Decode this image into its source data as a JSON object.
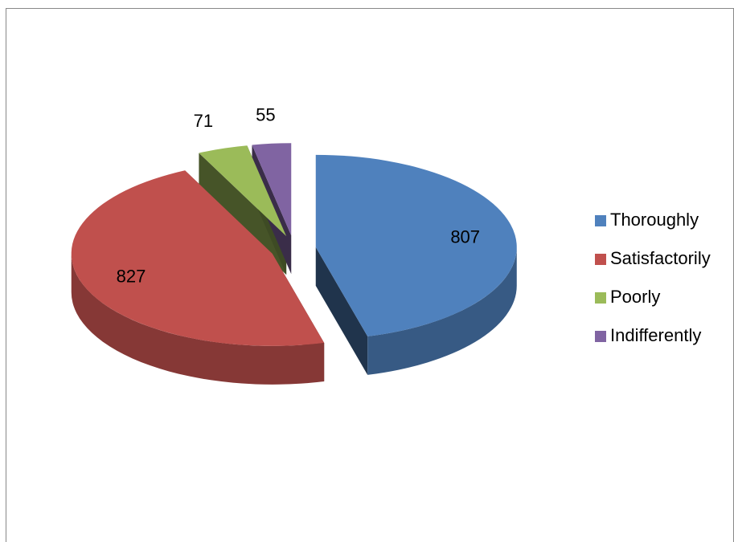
{
  "chart_data": {
    "type": "pie",
    "categories": [
      "Thoroughly",
      "Satisfactorily",
      "Poorly",
      "Indifferently"
    ],
    "values": [
      807,
      827,
      71,
      55
    ],
    "colors": [
      "#4f81bd",
      "#c0504d",
      "#9bbb59",
      "#8064a2"
    ],
    "legend": "right"
  }
}
